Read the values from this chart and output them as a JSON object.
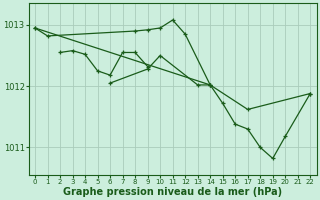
{
  "bg_color": "#cceedd",
  "grid_color": "#aaccbb",
  "line_color": "#1a5c1a",
  "xlabel": "Graphe pression niveau de la mer (hPa)",
  "xlim": [
    -0.5,
    22.5
  ],
  "ylim": [
    1010.55,
    1013.35
  ],
  "yticks": [
    1011,
    1012,
    1013
  ],
  "xticks": [
    0,
    1,
    2,
    3,
    4,
    5,
    6,
    7,
    8,
    9,
    10,
    11,
    12,
    13,
    14,
    15,
    16,
    17,
    18,
    19,
    20,
    21,
    22
  ],
  "series": [
    {
      "x": [
        0,
        1,
        8,
        9,
        10,
        11,
        12,
        14
      ],
      "y": [
        1012.95,
        1012.82,
        1012.9,
        1012.92,
        1012.95,
        1013.08,
        1012.85,
        1012.02
      ]
    },
    {
      "x": [
        2,
        3,
        4,
        5,
        6,
        7,
        8,
        9
      ],
      "y": [
        1012.55,
        1012.58,
        1012.52,
        1012.25,
        1012.18,
        1012.55,
        1012.55,
        1012.32
      ]
    },
    {
      "x": [
        6,
        9,
        10,
        13,
        14,
        15,
        16,
        17,
        18,
        19,
        20,
        22
      ],
      "y": [
        1012.05,
        1012.28,
        1012.5,
        1012.02,
        1012.02,
        1011.72,
        1011.38,
        1011.3,
        1011.0,
        1010.82,
        1011.18,
        1011.88
      ]
    },
    {
      "x": [
        0,
        14,
        17,
        22
      ],
      "y": [
        1012.95,
        1012.02,
        1011.62,
        1011.88
      ]
    }
  ]
}
